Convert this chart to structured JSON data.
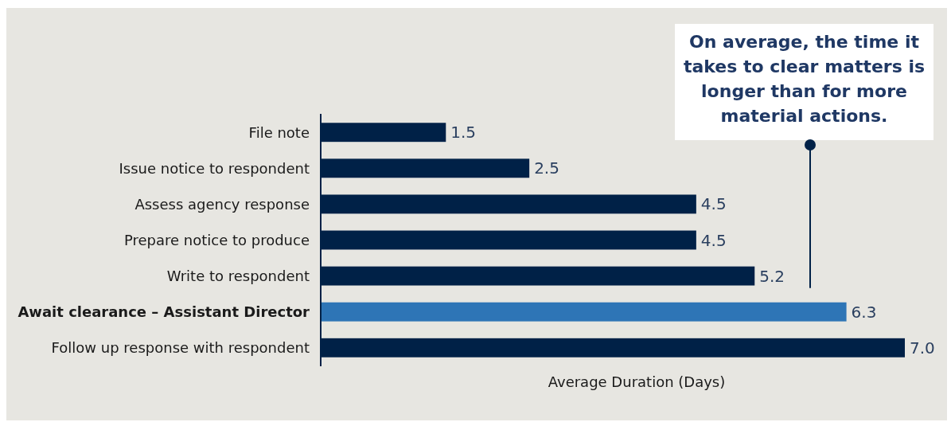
{
  "chart_data": {
    "type": "bar",
    "orientation": "horizontal",
    "xlabel": "Average Duration (Days)",
    "categories": [
      "File note",
      "Issue notice to respondent",
      "Assess agency response",
      "Prepare notice to produce",
      "Write to respondent",
      "Await clearance – Assistant Director",
      "Follow up response with respondent"
    ],
    "values": [
      1.5,
      2.5,
      4.5,
      4.5,
      5.2,
      6.3,
      7.0
    ],
    "value_labels": [
      "1.5",
      "2.5",
      "4.5",
      "4.5",
      "5.2",
      "6.3",
      "7.0"
    ],
    "colors": [
      "#002147",
      "#002147",
      "#002147",
      "#002147",
      "#002147",
      "#2e75b6",
      "#002147"
    ],
    "annotations": [
      "On average, the time it takes to clear matters is longer than for more material actions."
    ]
  }
}
